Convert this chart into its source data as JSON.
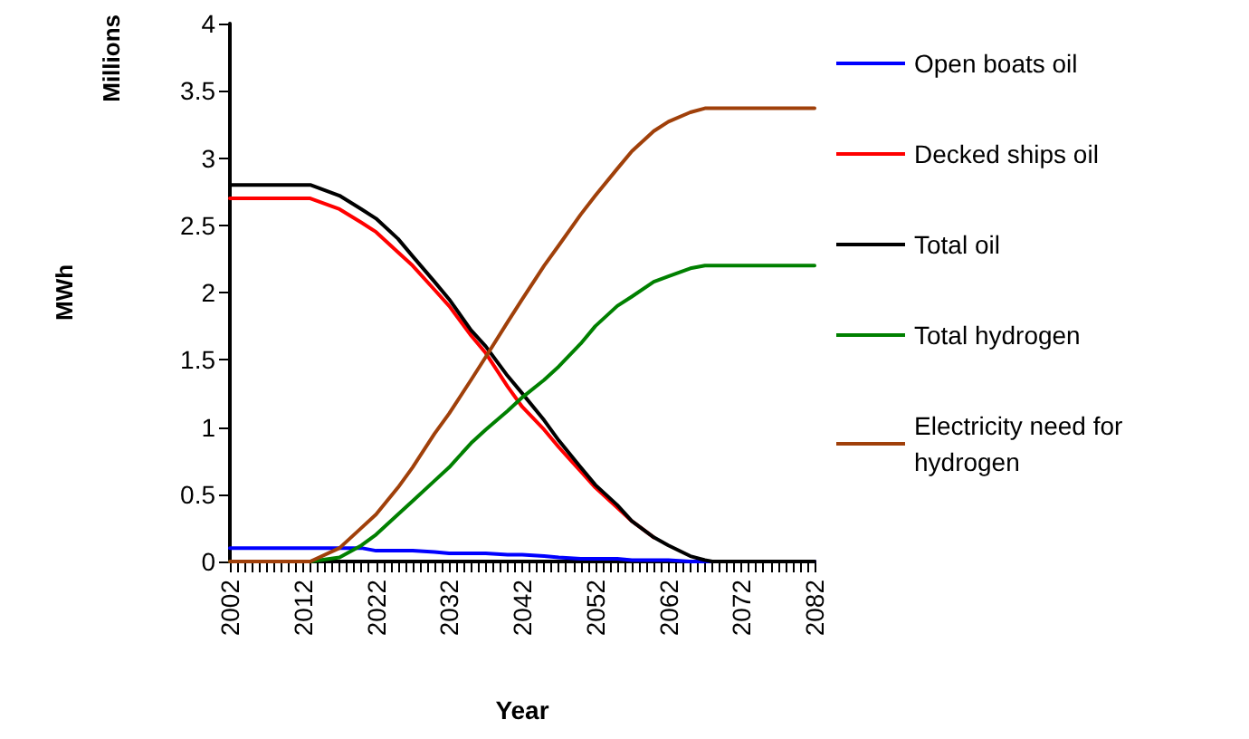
{
  "chart_data": {
    "type": "line",
    "xlabel": "Year",
    "ylabel": "MWh",
    "annotations": [
      "Millions"
    ],
    "xlim": [
      2002,
      2082
    ],
    "xticks": [
      2002,
      2012,
      2022,
      2032,
      2042,
      2052,
      2062,
      2072,
      2082
    ],
    "ylim": [
      0,
      4
    ],
    "yticks": [
      0,
      0.5,
      1,
      1.5,
      2,
      2.5,
      3,
      3.5,
      4
    ],
    "grid": false,
    "legend": "right",
    "marker": "none",
    "line_style": "solid",
    "x": [
      2002,
      2013,
      2017,
      2020,
      2022,
      2025,
      2027,
      2030,
      2032,
      2035,
      2037,
      2040,
      2042,
      2045,
      2047,
      2050,
      2052,
      2055,
      2057,
      2060,
      2062,
      2065,
      2067,
      2068,
      2072,
      2082
    ],
    "series": [
      {
        "name": "Open boats oil",
        "color": "#0000ff",
        "values": [
          0.1,
          0.1,
          0.1,
          0.1,
          0.08,
          0.08,
          0.08,
          0.07,
          0.06,
          0.06,
          0.06,
          0.05,
          0.05,
          0.04,
          0.03,
          0.02,
          0.02,
          0.02,
          0.01,
          0.01,
          0.01,
          0.0,
          0.0,
          0.0,
          0.0,
          0.0
        ]
      },
      {
        "name": "Decked ships oil",
        "color": "#ff0000",
        "values": [
          2.7,
          2.7,
          2.62,
          2.52,
          2.45,
          2.3,
          2.2,
          2.02,
          1.9,
          1.68,
          1.55,
          1.3,
          1.15,
          0.98,
          0.85,
          0.67,
          0.55,
          0.4,
          0.3,
          0.18,
          null,
          null,
          null,
          null,
          null,
          null
        ]
      },
      {
        "name": "Total oil",
        "color": "#000000",
        "values": [
          2.8,
          2.8,
          2.72,
          2.62,
          2.55,
          2.4,
          2.27,
          2.08,
          1.95,
          1.72,
          1.6,
          1.38,
          1.25,
          1.05,
          0.9,
          0.7,
          0.57,
          0.42,
          0.3,
          0.18,
          0.12,
          0.04,
          0.01,
          0.0,
          0.0,
          0.0
        ]
      },
      {
        "name": "Total hydrogen",
        "color": "#008000",
        "values": [
          0.0,
          0.0,
          0.03,
          0.12,
          0.2,
          0.35,
          0.45,
          0.6,
          0.7,
          0.88,
          0.98,
          1.12,
          1.22,
          1.35,
          1.45,
          1.62,
          1.75,
          1.9,
          1.97,
          2.08,
          2.12,
          2.18,
          2.2,
          2.2,
          2.2,
          2.2
        ]
      },
      {
        "name": "Electricity need for hydrogen",
        "color": "#a0400a",
        "values": [
          0.0,
          0.0,
          0.1,
          0.25,
          0.35,
          0.55,
          0.7,
          0.95,
          1.1,
          1.35,
          1.52,
          1.78,
          1.95,
          2.2,
          2.35,
          2.58,
          2.72,
          2.92,
          3.05,
          3.2,
          3.27,
          3.34,
          3.37,
          3.37,
          3.37,
          3.37
        ]
      }
    ]
  }
}
